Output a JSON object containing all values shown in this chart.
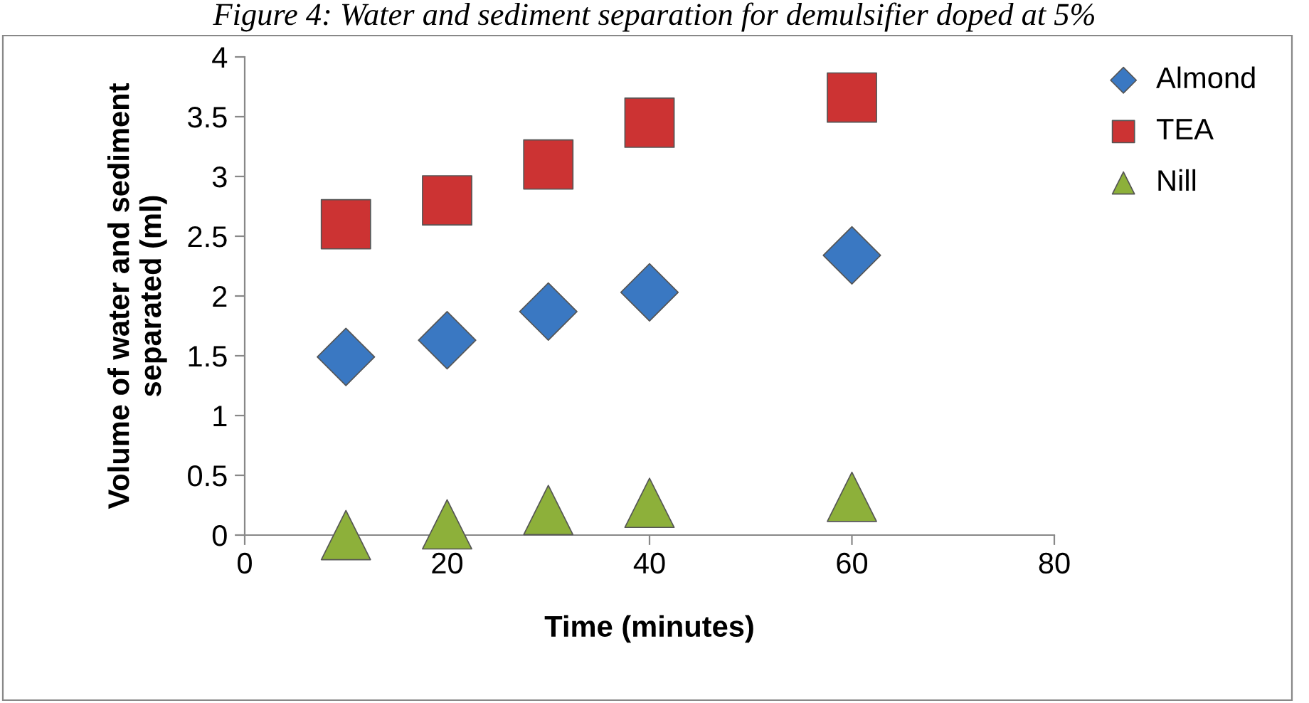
{
  "chart_data": {
    "type": "scatter",
    "title": "Figure 4: Water and sediment separation for demulsifier doped at 5%",
    "xlabel": "Time (minutes)",
    "ylabel": "Volume of water and sediment\nseparated (ml)",
    "x": [
      10,
      20,
      30,
      40,
      60
    ],
    "series": [
      {
        "name": "Almond",
        "color": "#3a78c2",
        "marker": "diamond",
        "values": [
          1.49,
          1.63,
          1.87,
          2.03,
          2.34
        ]
      },
      {
        "name": "TEA",
        "color": "#cc3333",
        "marker": "square",
        "values": [
          2.6,
          2.8,
          3.1,
          3.45,
          3.66
        ]
      },
      {
        "name": "Nill",
        "color": "#8db03a",
        "marker": "triangle",
        "values": [
          0,
          0.09,
          0.21,
          0.27,
          0.32
        ]
      }
    ],
    "xlim": [
      0,
      80
    ],
    "xticks": [
      0,
      20,
      40,
      60,
      80
    ],
    "ylim": [
      0,
      4
    ],
    "yticks": [
      0,
      0.5,
      1,
      1.5,
      2,
      2.5,
      3,
      3.5,
      4
    ],
    "grid": false,
    "legend": "top right"
  }
}
